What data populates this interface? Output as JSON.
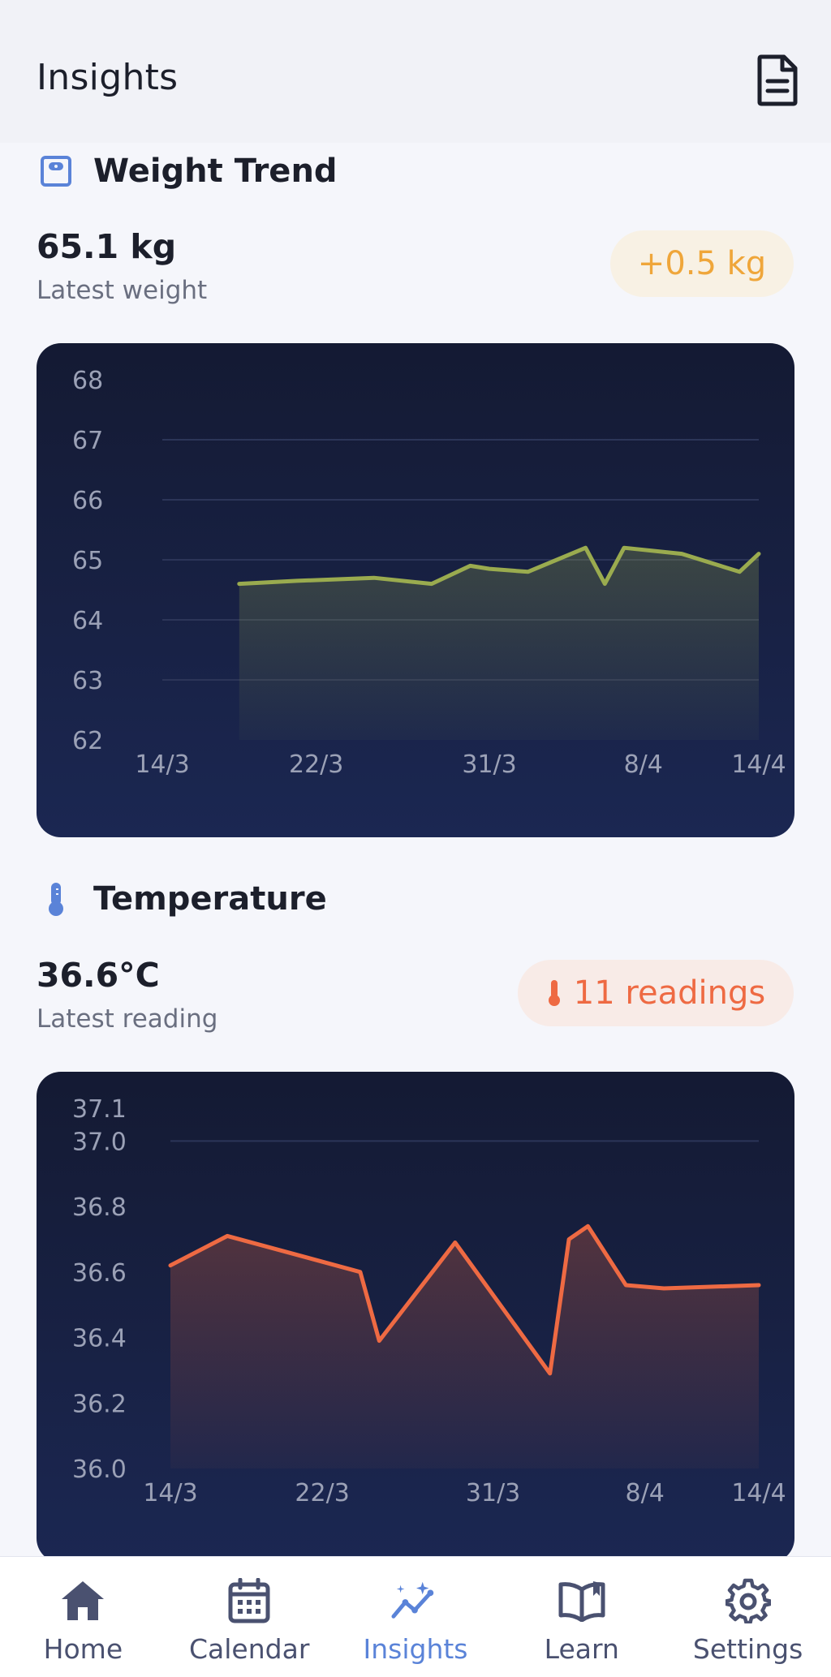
{
  "header": {
    "title": "Insights",
    "report_icon": "document-icon"
  },
  "weight": {
    "section_title": "Weight Trend",
    "icon": "scale-icon",
    "value": "65.1 kg",
    "subtitle": "Latest weight",
    "badge": "+0.5 kg",
    "colors": {
      "line": "#9aab4f",
      "badge_text": "#efa63a",
      "badge_bg": "#f8f1e4"
    }
  },
  "temperature": {
    "section_title": "Temperature",
    "icon": "thermometer-icon",
    "value": "36.6°C",
    "subtitle": "Latest reading",
    "badge": "11 readings",
    "colors": {
      "line": "#ee6a43",
      "badge_text": "#ee6a43",
      "badge_bg": "#f8ebe7"
    }
  },
  "chart_data": [
    {
      "type": "area",
      "name": "weight",
      "y_ticks": [
        "68",
        "67",
        "66",
        "65",
        "64",
        "63",
        "62"
      ],
      "x_ticks": [
        "14/3",
        "22/3",
        "31/3",
        "8/4",
        "14/4"
      ],
      "ylim": [
        62,
        68
      ],
      "points": [
        {
          "x": "18/3",
          "y": 64.6
        },
        {
          "x": "21/3",
          "y": 64.65
        },
        {
          "x": "25/3",
          "y": 64.7
        },
        {
          "x": "28/3",
          "y": 64.6
        },
        {
          "x": "30/3",
          "y": 64.9
        },
        {
          "x": "31/3",
          "y": 64.85
        },
        {
          "x": "2/4",
          "y": 64.8
        },
        {
          "x": "5/4",
          "y": 65.2
        },
        {
          "x": "6/4",
          "y": 64.6
        },
        {
          "x": "7/4",
          "y": 65.2
        },
        {
          "x": "10/4",
          "y": 65.1
        },
        {
          "x": "13/4",
          "y": 64.8
        },
        {
          "x": "14/4",
          "y": 65.1
        }
      ]
    },
    {
      "type": "area",
      "name": "temperature",
      "y_ticks": [
        "37.1",
        "37.0",
        "36.8",
        "36.6",
        "36.4",
        "36.2",
        "36.0"
      ],
      "x_ticks": [
        "14/3",
        "22/3",
        "31/3",
        "8/4",
        "14/4"
      ],
      "ylim": [
        36.0,
        37.1
      ],
      "points": [
        {
          "x": "14/3",
          "y": 36.62
        },
        {
          "x": "17/3",
          "y": 36.71
        },
        {
          "x": "24/3",
          "y": 36.6
        },
        {
          "x": "25/3",
          "y": 36.39
        },
        {
          "x": "29/3",
          "y": 36.69
        },
        {
          "x": "3/4",
          "y": 36.29
        },
        {
          "x": "4/4",
          "y": 36.7
        },
        {
          "x": "5/4",
          "y": 36.74
        },
        {
          "x": "7/4",
          "y": 36.56
        },
        {
          "x": "9/4",
          "y": 36.55
        },
        {
          "x": "14/4",
          "y": 36.56
        }
      ]
    }
  ],
  "nav": [
    {
      "label": "Home",
      "icon": "home-icon",
      "active": false
    },
    {
      "label": "Calendar",
      "icon": "calendar-icon",
      "active": false
    },
    {
      "label": "Insights",
      "icon": "insights-icon",
      "active": true
    },
    {
      "label": "Learn",
      "icon": "book-icon",
      "active": false
    },
    {
      "label": "Settings",
      "icon": "gear-icon",
      "active": false
    }
  ]
}
